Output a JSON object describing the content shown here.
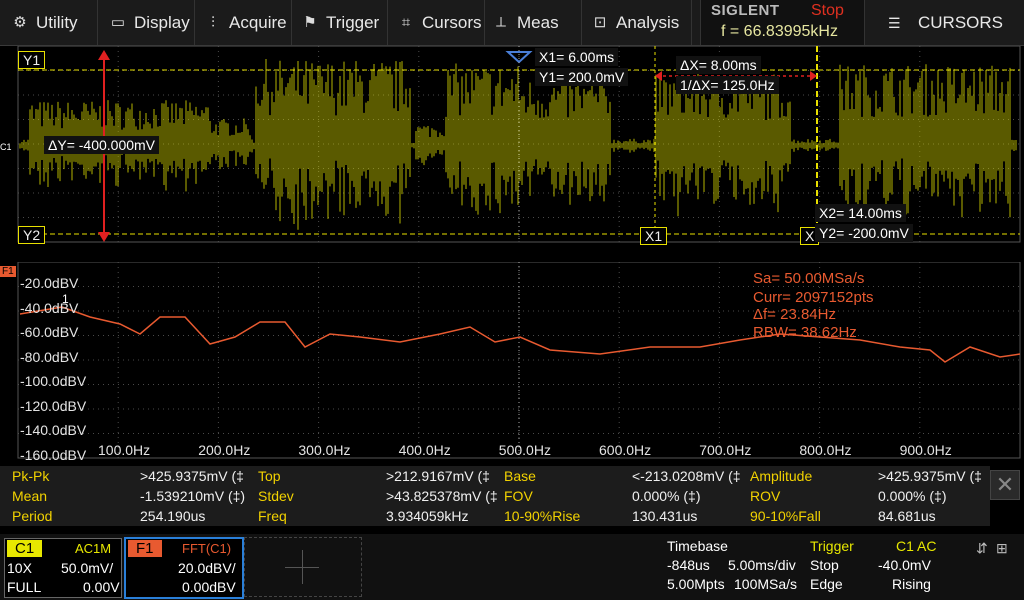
{
  "menu": {
    "utility": "Utility",
    "display": "Display",
    "acquire": "Acquire",
    "trigger": "Trigger",
    "cursors": "Cursors",
    "meas": "Meas",
    "analysis": "Analysis",
    "right_panel": "CURSORS"
  },
  "status": {
    "brand": "SIGLENT",
    "run_state": "Stop",
    "frequency": "f = 66.83995kHz"
  },
  "waveform": {
    "channel_marker": "C1",
    "y1_label": "Y1",
    "y2_label": "Y2",
    "x1_label": "X1",
    "x2_label": "X",
    "delta_y": "ΔY= -400.000mV",
    "x1_readout": "X1= 6.00ms",
    "y1_readout": "Y1= 200.0mV",
    "delta_x": "ΔX= 8.00ms",
    "inv_delta_x": "1/ΔX= 125.0Hz",
    "x2_readout": "X2= 14.00ms",
    "y2_readout": "Y2= -200.0mV"
  },
  "fft": {
    "marker": "F1",
    "peak_marker": "1",
    "db_labels": [
      "-20.0dBV",
      "-40.0dBV",
      "-60.0dBV",
      "-80.0dBV",
      "-100.0dBV",
      "-120.0dBV",
      "-140.0dBV",
      "-160.0dBV"
    ],
    "hz_labels": [
      "100.0Hz",
      "200.0Hz",
      "300.0Hz",
      "400.0Hz",
      "500.0Hz",
      "600.0Hz",
      "700.0Hz",
      "800.0Hz",
      "900.0Hz"
    ],
    "sample_rate": "Sa= 50.00MSa/s",
    "curr_points": "Curr= 2097152pts",
    "delta_f": "Δf= 23.84Hz",
    "rbw": "RBW= 38.62Hz"
  },
  "measurements": [
    [
      {
        "name": "Pk-Pk",
        "value": ">425.9375mV (‡"
      },
      {
        "name": "Top",
        "value": ">212.9167mV (‡"
      },
      {
        "name": "Base",
        "value": "<-213.0208mV (‡"
      },
      {
        "name": "Amplitude",
        "value": ">425.9375mV (‡"
      }
    ],
    [
      {
        "name": "Mean",
        "value": "-1.539210mV (‡)"
      },
      {
        "name": "Stdev",
        "value": ">43.825378mV (‡"
      },
      {
        "name": "FOV",
        "value": "0.000% (‡)"
      },
      {
        "name": "ROV",
        "value": "0.000% (‡)"
      }
    ],
    [
      {
        "name": "Period",
        "value": "254.190us"
      },
      {
        "name": "Freq",
        "value": "3.934059kHz"
      },
      {
        "name": "10-90%Rise",
        "value": "130.431us"
      },
      {
        "name": "90-10%Fall",
        "value": "84.681us"
      }
    ]
  ],
  "channel": {
    "name": "C1",
    "coupling": "AC1M",
    "probe": "10X",
    "scale": "50.0mV/",
    "bandwidth": "FULL",
    "offset": "0.00V"
  },
  "math": {
    "name": "F1",
    "function": "FFT(C1)",
    "scale": "20.0dBV/",
    "offset": "0.00dBV"
  },
  "timebase": {
    "label": "Timebase",
    "delay": "-848us",
    "scale": "5.00ms/div",
    "memory": "5.00Mpts",
    "sample_rate": "100MSa/s"
  },
  "trigger": {
    "label": "Trigger",
    "source": "C1 AC",
    "mode": "Stop",
    "level": "-40.0mV",
    "type": "Edge",
    "slope": "Rising"
  },
  "colors": {
    "trace": "#e8e800",
    "fft": "#e85a30",
    "cursor": "#e8e000",
    "accent_blue": "#2a7fd8"
  }
}
